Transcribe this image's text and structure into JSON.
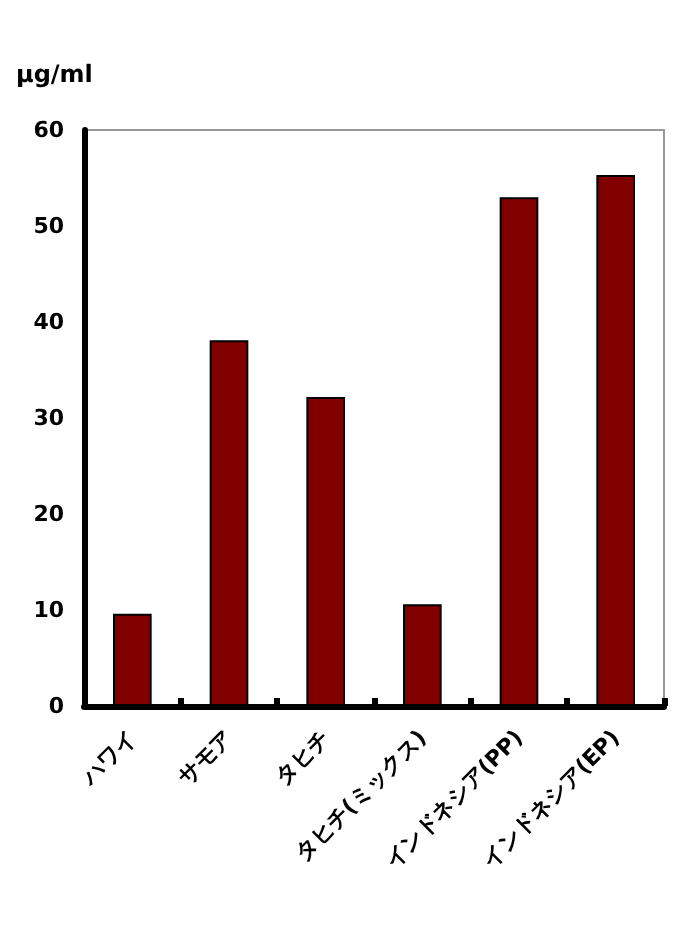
{
  "chart_data": {
    "type": "bar",
    "ylabel": "μg/ml",
    "categories": [
      "ハワイ",
      "サモア",
      "タヒチ",
      "タヒチ(ミックス)",
      "インドネシア(PP)",
      "インドネシア(EP)"
    ],
    "values": [
      9.6,
      38.1,
      32.2,
      10.6,
      53.0,
      55.3
    ],
    "color": "#800000",
    "ylim": [
      0,
      60
    ],
    "yticks": [
      0,
      10,
      20,
      30,
      40,
      50,
      60
    ],
    "grid": false
  }
}
